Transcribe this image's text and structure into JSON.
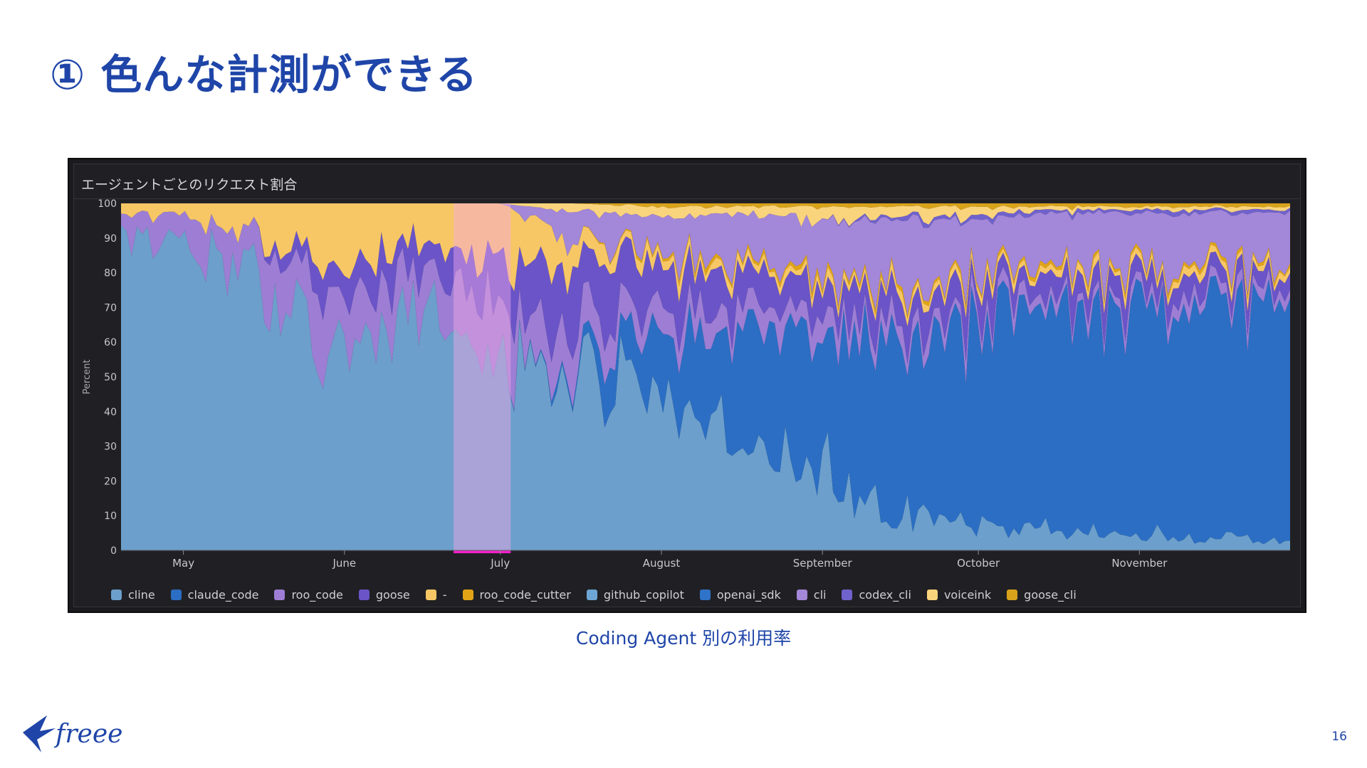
{
  "slide": {
    "title": "① 色んな計測ができる",
    "caption": "Coding Agent 別の利用率",
    "page_number": "16",
    "logo": "freee"
  },
  "colors": {
    "title": "#1f45a8",
    "panel_background": "#202024",
    "highlight": "#f021c8"
  },
  "chart_data": {
    "type": "area",
    "stacked": "percent",
    "title": "エージェントごとのリクエスト割合",
    "ylabel": "Percent",
    "ylim": [
      0,
      100
    ],
    "yticks": [
      0,
      10,
      20,
      30,
      40,
      50,
      60,
      70,
      80,
      90,
      100
    ],
    "x_range": [
      "2025-04-19",
      "2025-11-30"
    ],
    "month_ticks": [
      {
        "label": "May",
        "date": "2025-05-01"
      },
      {
        "label": "June",
        "date": "2025-06-01"
      },
      {
        "label": "July",
        "date": "2025-07-01"
      },
      {
        "label": "August",
        "date": "2025-08-01"
      },
      {
        "label": "September",
        "date": "2025-09-01"
      },
      {
        "label": "October",
        "date": "2025-10-01"
      },
      {
        "label": "November",
        "date": "2025-11-01"
      }
    ],
    "highlight_range": [
      "2025-06-22",
      "2025-07-03"
    ],
    "legend_position": "bottom",
    "legend": [
      {
        "name": "cline",
        "color": "#6c9fcb"
      },
      {
        "name": "claude_code",
        "color": "#2b6ec4"
      },
      {
        "name": "roo_code",
        "color": "#9d7ed4"
      },
      {
        "name": "goose",
        "color": "#6a54c8"
      },
      {
        "name": "-",
        "color": "#f7c765"
      },
      {
        "name": "roo_code_cutter",
        "color": "#e0a416"
      },
      {
        "name": "github_copilot",
        "color": "#6da5d4"
      },
      {
        "name": "openai_sdk",
        "color": "#2f73c9"
      },
      {
        "name": "cli",
        "color": "#a387d8"
      },
      {
        "name": "codex_cli",
        "color": "#7062cc"
      },
      {
        "name": "voiceink",
        "color": "#fad47c"
      },
      {
        "name": "goose_cli",
        "color": "#d8a21a"
      }
    ],
    "x": [
      "2025-04-19",
      "2025-05-01",
      "2025-05-15",
      "2025-06-01",
      "2025-06-15",
      "2025-07-01",
      "2025-07-15",
      "2025-08-01",
      "2025-08-15",
      "2025-09-01",
      "2025-09-15",
      "2025-10-01",
      "2025-10-15",
      "2025-11-01",
      "2025-11-15",
      "2025-11-30"
    ],
    "series": [
      {
        "name": "cline",
        "values": [
          92,
          88,
          80,
          55,
          72,
          52,
          55,
          42,
          30,
          22,
          10,
          8,
          6,
          5,
          4,
          3
        ]
      },
      {
        "name": "claude_code",
        "values": [
          0,
          0,
          0,
          0,
          0,
          0,
          2,
          18,
          36,
          42,
          52,
          58,
          64,
          63,
          66,
          68
        ]
      },
      {
        "name": "roo_code",
        "values": [
          5,
          8,
          12,
          15,
          10,
          18,
          10,
          8,
          6,
          5,
          4,
          4,
          3,
          3,
          3,
          3
        ]
      },
      {
        "name": "goose",
        "values": [
          0,
          0,
          0,
          10,
          8,
          12,
          18,
          14,
          10,
          9,
          8,
          7,
          6,
          6,
          5,
          5
        ]
      },
      {
        "name": "-",
        "values": [
          3,
          4,
          8,
          20,
          10,
          18,
          5,
          3,
          2,
          2,
          2,
          2,
          2,
          2,
          2,
          2
        ]
      },
      {
        "name": "roo_code_cutter",
        "values": [
          0,
          0,
          0,
          0,
          0,
          0,
          0,
          1,
          1,
          1,
          1,
          1,
          1,
          1,
          1,
          1
        ]
      },
      {
        "name": "github_copilot",
        "values": [
          0,
          0,
          0,
          0,
          0,
          0,
          0,
          0,
          0,
          0,
          0,
          0,
          0,
          0,
          0,
          0
        ]
      },
      {
        "name": "openai_sdk",
        "values": [
          0,
          0,
          0,
          0,
          0,
          0,
          0,
          0,
          0,
          0,
          0,
          0,
          0,
          0,
          0,
          0
        ]
      },
      {
        "name": "cli",
        "values": [
          0,
          0,
          0,
          0,
          0,
          0,
          8,
          10,
          12,
          14,
          18,
          16,
          15,
          17,
          16,
          15
        ]
      },
      {
        "name": "codex_cli",
        "values": [
          0,
          0,
          0,
          0,
          0,
          0,
          0,
          0,
          0,
          0,
          1,
          1,
          1,
          1,
          1,
          1
        ]
      },
      {
        "name": "voiceink",
        "values": [
          0,
          0,
          0,
          0,
          0,
          0,
          2,
          3,
          2,
          4,
          3,
          2,
          1,
          1,
          1,
          1
        ]
      },
      {
        "name": "goose_cli",
        "values": [
          0,
          0,
          0,
          0,
          0,
          0,
          0,
          1,
          1,
          1,
          1,
          1,
          1,
          1,
          1,
          1
        ]
      }
    ]
  }
}
